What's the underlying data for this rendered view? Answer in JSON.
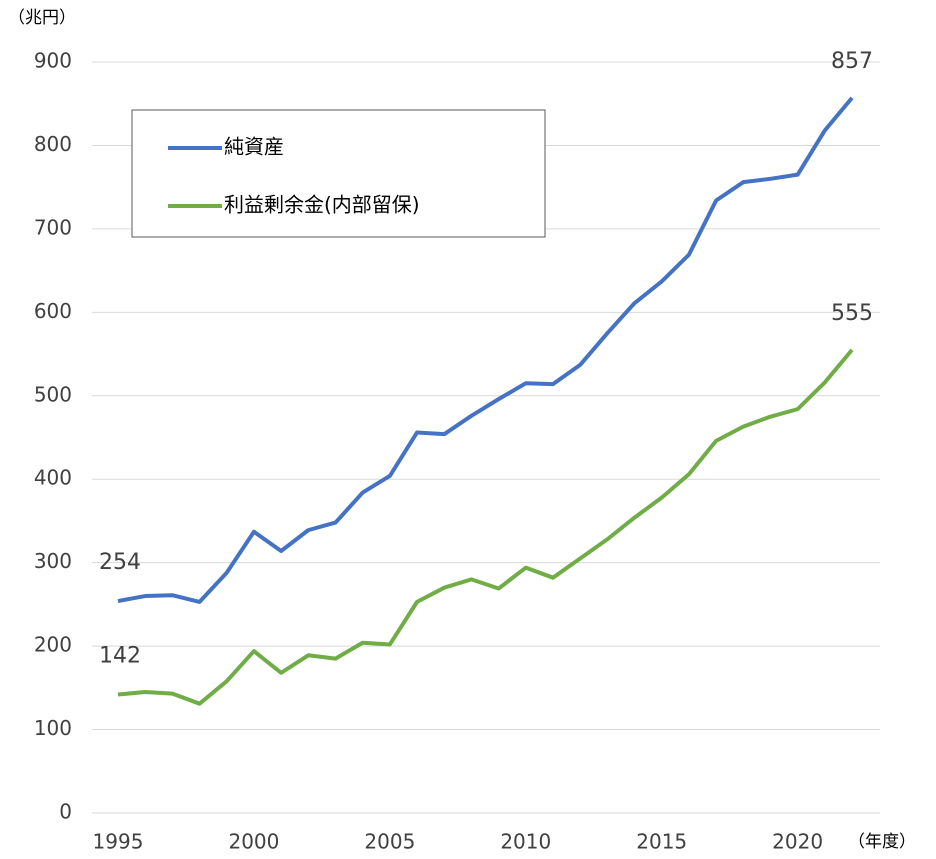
{
  "chart_data": {
    "type": "line",
    "y_label": "（兆円）",
    "x_label": "（年度）",
    "x": [
      1995,
      1996,
      1997,
      1998,
      1999,
      2000,
      2001,
      2002,
      2003,
      2004,
      2005,
      2006,
      2007,
      2008,
      2009,
      2010,
      2011,
      2012,
      2013,
      2014,
      2015,
      2016,
      2017,
      2018,
      2019,
      2020,
      2021,
      2022
    ],
    "series": [
      {
        "name": "純資産",
        "color": "#4472c4",
        "values": [
          254,
          260,
          261,
          253,
          288,
          337,
          314,
          339,
          348,
          384,
          404,
          456,
          454,
          476,
          496,
          515,
          514,
          537,
          575,
          611,
          637,
          669,
          734,
          756,
          760,
          765,
          818,
          857
        ]
      },
      {
        "name": "利益剰余金(内部留保)",
        "color": "#70ad47",
        "values": [
          142,
          145,
          143,
          131,
          158,
          194,
          168,
          189,
          185,
          204,
          202,
          253,
          270,
          280,
          269,
          294,
          282,
          305,
          328,
          354,
          378,
          406,
          446,
          463,
          475,
          484,
          516,
          555
        ]
      }
    ],
    "xlim": [
      1995,
      2022
    ],
    "xticks": [
      1995,
      2000,
      2005,
      2010,
      2015,
      2020
    ],
    "ylim": [
      0,
      900
    ],
    "yticks": [
      0,
      100,
      200,
      300,
      400,
      500,
      600,
      700,
      800,
      900
    ],
    "grid": true,
    "legend": "upper left"
  }
}
